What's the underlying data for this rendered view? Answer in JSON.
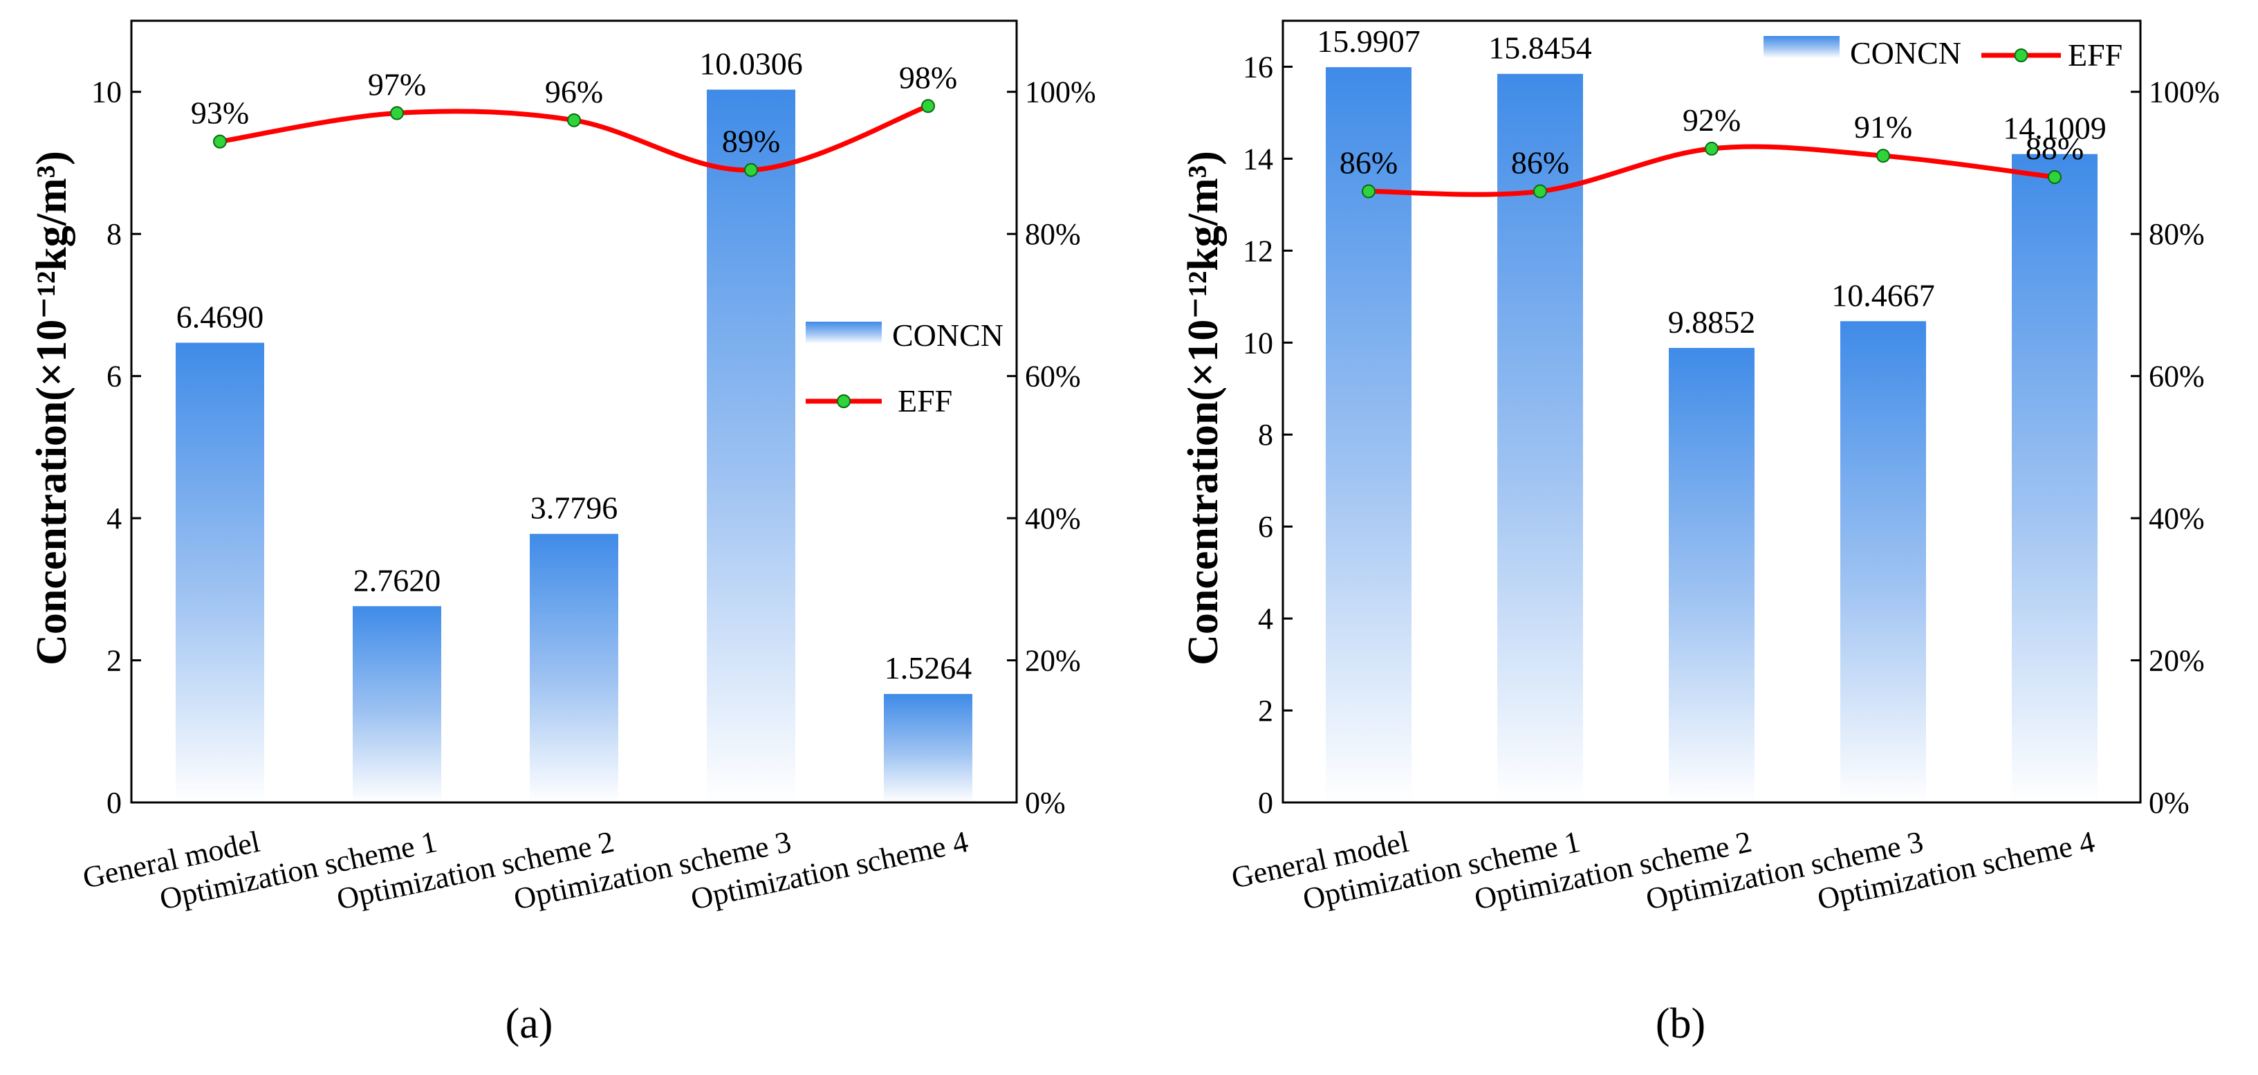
{
  "chart_data": [
    {
      "type": "bar",
      "panel": "a",
      "caption": "(a)",
      "categories": [
        "General model",
        "Optimization scheme 1",
        "Optimization scheme 2",
        "Optimization scheme 3",
        "Optimization scheme 4"
      ],
      "series": [
        {
          "name": "CONCN",
          "axis": "left",
          "values": [
            6.469,
            2.762,
            3.7796,
            10.0306,
            1.5264
          ],
          "labels": [
            "6.4690",
            "2.7620",
            "3.7796",
            "10.0306",
            "1.5264"
          ]
        },
        {
          "name": "EFF",
          "axis": "right",
          "type": "line",
          "values": [
            93,
            97,
            96,
            89,
            98
          ],
          "labels": [
            "93%",
            "97%",
            "96%",
            "89%",
            "98%"
          ]
        }
      ],
      "ylabel": "Concentration(×10⁻¹²kg/m³)",
      "ylim": [
        0,
        11
      ],
      "yticks": [
        "0",
        "2",
        "4",
        "6",
        "8",
        "10"
      ],
      "ytick_values": [
        0,
        2,
        4,
        6,
        8,
        10
      ],
      "y2lim": [
        0,
        110
      ],
      "y2ticks": [
        "0%",
        "20%",
        "40%",
        "60%",
        "80%",
        "100%"
      ],
      "y2tick_values": [
        0,
        20,
        40,
        60,
        80,
        100
      ],
      "legend": [
        "CONCN",
        "EFF"
      ],
      "legend_position": "center-right",
      "colors": {
        "bar": "#3f8be8",
        "line": "#ff0000",
        "marker": "#2fd33a"
      }
    },
    {
      "type": "bar",
      "panel": "b",
      "caption": "(b)",
      "categories": [
        "General model",
        "Optimization scheme 1",
        "Optimization scheme 2",
        "Optimization scheme 3",
        "Optimization scheme 4"
      ],
      "series": [
        {
          "name": "CONCN",
          "axis": "left",
          "values": [
            15.9907,
            15.8454,
            9.8852,
            10.4667,
            14.1009
          ],
          "labels": [
            "15.9907",
            "15.8454",
            "9.8852",
            "10.4667",
            "14.1009"
          ]
        },
        {
          "name": "EFF",
          "axis": "right",
          "type": "line",
          "values": [
            86,
            86,
            92,
            91,
            88
          ],
          "labels": [
            "86%",
            "86%",
            "92%",
            "91%",
            "88%"
          ]
        }
      ],
      "ylabel": "Concentration(×10⁻¹²kg/m³)",
      "ylim": [
        0,
        17
      ],
      "yticks": [
        "0",
        "2",
        "4",
        "6",
        "8",
        "10",
        "12",
        "14",
        "16"
      ],
      "ytick_values": [
        0,
        2,
        4,
        6,
        8,
        10,
        12,
        14,
        16
      ],
      "y2lim": [
        0,
        110
      ],
      "y2ticks": [
        "0%",
        "20%",
        "40%",
        "60%",
        "80%",
        "100%"
      ],
      "y2tick_values": [
        0,
        20,
        40,
        60,
        80,
        100
      ],
      "legend": [
        "CONCN",
        "EFF"
      ],
      "legend_position": "top-right",
      "colors": {
        "bar": "#3f8be8",
        "line": "#ff0000",
        "marker": "#2fd33a"
      }
    }
  ]
}
